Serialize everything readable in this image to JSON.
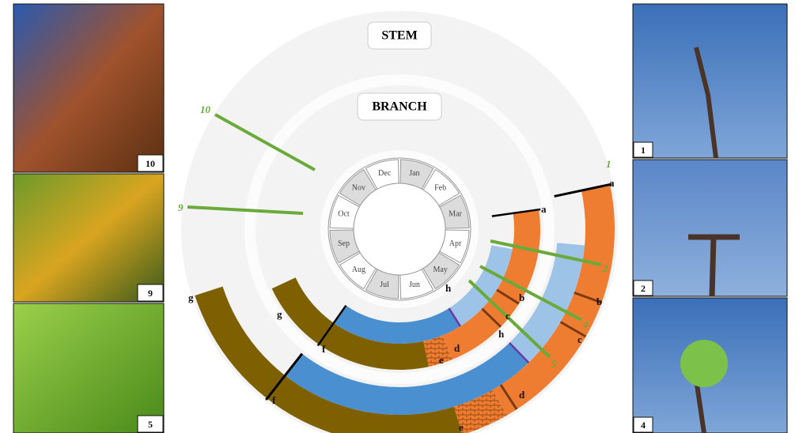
{
  "labels": {
    "stem": "STEM",
    "branch": "BRANCH"
  },
  "months": [
    "Jan",
    "Feb",
    "Mar",
    "Apr",
    "May",
    "Jun",
    "Jul",
    "Aug",
    "Sep",
    "Oct",
    "Nov",
    "Dec"
  ],
  "stages": [
    "1",
    "2",
    "4",
    "5",
    "9",
    "10"
  ],
  "branch_phases": [
    "a",
    "b",
    "c",
    "d",
    "e",
    "f",
    "g",
    "h"
  ],
  "stem_phases": [
    "a",
    "b",
    "c",
    "d",
    "e",
    "f",
    "g",
    "h"
  ],
  "photos": {
    "left": [
      "10",
      "9",
      "5"
    ],
    "right": [
      "1",
      "2",
      "4"
    ]
  }
}
